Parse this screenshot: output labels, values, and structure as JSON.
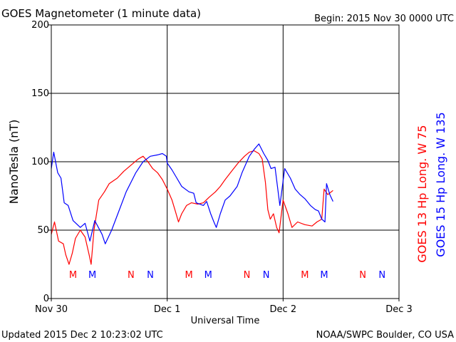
{
  "header": {
    "title": "GOES Magnetometer (1 minute data)",
    "begin": "Begin:  2015 Nov 30 0000 UTC"
  },
  "footer": {
    "updated": "Updated 2015 Dec  2 10:23:02 UTC",
    "credit": "NOAA/SWPC Boulder, CO USA"
  },
  "colors": {
    "goes13": "#ff0000",
    "goes15": "#0000ff",
    "grid": "#000000"
  },
  "chart_data": {
    "type": "line",
    "title": "GOES Magnetometer (1 minute data)",
    "xlabel": "Universal Time",
    "ylabel": "NanoTesla (nT)",
    "xlim": [
      "2015-11-30 00:00",
      "2015-12-03 00:00"
    ],
    "ylim": [
      0,
      200
    ],
    "y_ticks": [
      0,
      50,
      100,
      150,
      200
    ],
    "x_ticks": [
      {
        "label": "Nov 30",
        "value": "2015-11-30 00:00"
      },
      {
        "label": "Dec 1",
        "value": "2015-12-01 00:00"
      },
      {
        "label": "Dec 2",
        "value": "2015-12-02 00:00"
      },
      {
        "label": "Dec 3",
        "value": "2015-12-03 00:00"
      }
    ],
    "grid": true,
    "legend_position": "right",
    "series": [
      {
        "name": "GOES 13 Hp  Long. W 75",
        "color": "#ff0000",
        "points": [
          [
            "2015-11-30 00:00",
            47
          ],
          [
            "2015-11-30 00:40",
            56
          ],
          [
            "2015-11-30 01:30",
            42
          ],
          [
            "2015-11-30 02:30",
            40
          ],
          [
            "2015-11-30 03:00",
            32
          ],
          [
            "2015-11-30 03:40",
            25
          ],
          [
            "2015-11-30 04:20",
            33
          ],
          [
            "2015-11-30 05:00",
            44
          ],
          [
            "2015-11-30 06:00",
            50
          ],
          [
            "2015-11-30 07:00",
            45
          ],
          [
            "2015-11-30 07:50",
            32
          ],
          [
            "2015-11-30 08:15",
            25
          ],
          [
            "2015-11-30 08:50",
            50
          ],
          [
            "2015-11-30 09:50",
            72
          ],
          [
            "2015-11-30 11:00",
            78
          ],
          [
            "2015-11-30 12:00",
            84
          ],
          [
            "2015-11-30 13:40",
            88
          ],
          [
            "2015-11-30 15:00",
            93
          ],
          [
            "2015-11-30 16:40",
            98
          ],
          [
            "2015-11-30 18:00",
            102
          ],
          [
            "2015-11-30 19:00",
            104
          ],
          [
            "2015-11-30 20:00",
            100
          ],
          [
            "2015-11-30 21:00",
            95
          ],
          [
            "2015-11-30 22:00",
            92
          ],
          [
            "2015-11-30 23:00",
            87
          ],
          [
            "2015-12-01 00:00",
            80
          ],
          [
            "2015-12-01 01:00",
            72
          ],
          [
            "2015-12-01 01:40",
            64
          ],
          [
            "2015-12-01 02:20",
            56
          ],
          [
            "2015-12-01 03:00",
            62
          ],
          [
            "2015-12-01 04:00",
            68
          ],
          [
            "2015-12-01 05:00",
            70
          ],
          [
            "2015-12-01 06:20",
            69
          ],
          [
            "2015-12-01 07:30",
            70
          ],
          [
            "2015-12-01 08:40",
            74
          ],
          [
            "2015-12-01 10:00",
            78
          ],
          [
            "2015-12-01 11:00",
            82
          ],
          [
            "2015-12-01 12:00",
            87
          ],
          [
            "2015-12-01 13:20",
            93
          ],
          [
            "2015-12-01 14:40",
            99
          ],
          [
            "2015-12-01 16:00",
            104
          ],
          [
            "2015-12-01 17:00",
            107
          ],
          [
            "2015-12-01 18:00",
            108
          ],
          [
            "2015-12-01 19:00",
            106
          ],
          [
            "2015-12-01 19:40",
            102
          ],
          [
            "2015-12-01 20:20",
            85
          ],
          [
            "2015-12-01 20:50",
            65
          ],
          [
            "2015-12-01 21:20",
            58
          ],
          [
            "2015-12-01 22:00",
            62
          ],
          [
            "2015-12-01 22:40",
            52
          ],
          [
            "2015-12-01 23:10",
            48
          ],
          [
            "2015-12-02 00:00",
            72
          ],
          [
            "2015-12-02 01:00",
            62
          ],
          [
            "2015-12-02 01:50",
            52
          ],
          [
            "2015-12-02 03:00",
            56
          ],
          [
            "2015-12-02 04:30",
            54
          ],
          [
            "2015-12-02 06:00",
            53
          ],
          [
            "2015-12-02 07:00",
            56
          ],
          [
            "2015-12-02 08:00",
            58
          ],
          [
            "2015-12-02 08:30",
            80
          ],
          [
            "2015-12-02 09:15",
            76
          ],
          [
            "2015-12-02 10:20",
            79
          ]
        ]
      },
      {
        "name": "GOES 15 Hp  Long. W 135",
        "color": "#0000ff",
        "points": [
          [
            "2015-11-30 00:00",
            95
          ],
          [
            "2015-11-30 00:30",
            107
          ],
          [
            "2015-11-30 01:20",
            92
          ],
          [
            "2015-11-30 02:00",
            88
          ],
          [
            "2015-11-30 02:40",
            70
          ],
          [
            "2015-11-30 03:30",
            68
          ],
          [
            "2015-11-30 04:30",
            57
          ],
          [
            "2015-11-30 06:00",
            52
          ],
          [
            "2015-11-30 07:00",
            55
          ],
          [
            "2015-11-30 08:00",
            42
          ],
          [
            "2015-11-30 09:00",
            57
          ],
          [
            "2015-11-30 10:30",
            47
          ],
          [
            "2015-11-30 11:10",
            40
          ],
          [
            "2015-11-30 12:30",
            50
          ],
          [
            "2015-11-30 14:00",
            64
          ],
          [
            "2015-11-30 15:30",
            78
          ],
          [
            "2015-11-30 17:30",
            92
          ],
          [
            "2015-11-30 19:00",
            100
          ],
          [
            "2015-11-30 20:30",
            104
          ],
          [
            "2015-11-30 22:00",
            105
          ],
          [
            "2015-11-30 23:00",
            106
          ],
          [
            "2015-11-30 23:50",
            104
          ],
          [
            "2015-12-01 00:00",
            99
          ],
          [
            "2015-12-01 01:00",
            94
          ],
          [
            "2015-12-01 02:00",
            88
          ],
          [
            "2015-12-01 03:00",
            82
          ],
          [
            "2015-12-01 04:30",
            78
          ],
          [
            "2015-12-01 05:30",
            77
          ],
          [
            "2015-12-01 06:00",
            70
          ],
          [
            "2015-12-01 07:30",
            68
          ],
          [
            "2015-12-01 08:10",
            71
          ],
          [
            "2015-12-01 09:00",
            62
          ],
          [
            "2015-12-01 09:40",
            56
          ],
          [
            "2015-12-01 10:10",
            52
          ],
          [
            "2015-12-01 11:00",
            62
          ],
          [
            "2015-12-01 12:00",
            72
          ],
          [
            "2015-12-01 13:00",
            75
          ],
          [
            "2015-12-01 14:30",
            82
          ],
          [
            "2015-12-01 15:30",
            92
          ],
          [
            "2015-12-01 17:00",
            104
          ],
          [
            "2015-12-01 18:00",
            109
          ],
          [
            "2015-12-01 19:00",
            113
          ],
          [
            "2015-12-01 20:00",
            106
          ],
          [
            "2015-12-01 20:50",
            101
          ],
          [
            "2015-12-01 21:30",
            95
          ],
          [
            "2015-12-01 22:20",
            96
          ],
          [
            "2015-12-01 23:20",
            68
          ],
          [
            "2015-12-02 00:20",
            95
          ],
          [
            "2015-12-02 01:30",
            88
          ],
          [
            "2015-12-02 02:30",
            80
          ],
          [
            "2015-12-02 03:30",
            76
          ],
          [
            "2015-12-02 04:30",
            73
          ],
          [
            "2015-12-02 05:40",
            68
          ],
          [
            "2015-12-02 06:40",
            65
          ],
          [
            "2015-12-02 07:20",
            64
          ],
          [
            "2015-12-02 08:00",
            58
          ],
          [
            "2015-12-02 08:40",
            56
          ],
          [
            "2015-12-02 09:00",
            84
          ],
          [
            "2015-12-02 09:40",
            76
          ],
          [
            "2015-12-02 10:20",
            71
          ]
        ]
      }
    ],
    "annotations": [
      {
        "label": "M",
        "time": "2015-11-30 04:30",
        "color": "#ff0000"
      },
      {
        "label": "M",
        "time": "2015-11-30 08:30",
        "color": "#0000ff"
      },
      {
        "label": "N",
        "time": "2015-11-30 16:30",
        "color": "#ff0000"
      },
      {
        "label": "N",
        "time": "2015-11-30 20:30",
        "color": "#0000ff"
      },
      {
        "label": "M",
        "time": "2015-12-01 04:30",
        "color": "#ff0000"
      },
      {
        "label": "M",
        "time": "2015-12-01 08:30",
        "color": "#0000ff"
      },
      {
        "label": "N",
        "time": "2015-12-01 16:30",
        "color": "#ff0000"
      },
      {
        "label": "N",
        "time": "2015-12-01 20:30",
        "color": "#0000ff"
      },
      {
        "label": "M",
        "time": "2015-12-02 04:30",
        "color": "#ff0000"
      },
      {
        "label": "M",
        "time": "2015-12-02 08:30",
        "color": "#0000ff"
      },
      {
        "label": "N",
        "time": "2015-12-02 16:30",
        "color": "#ff0000"
      },
      {
        "label": "N",
        "time": "2015-12-02 20:30",
        "color": "#0000ff"
      }
    ]
  }
}
